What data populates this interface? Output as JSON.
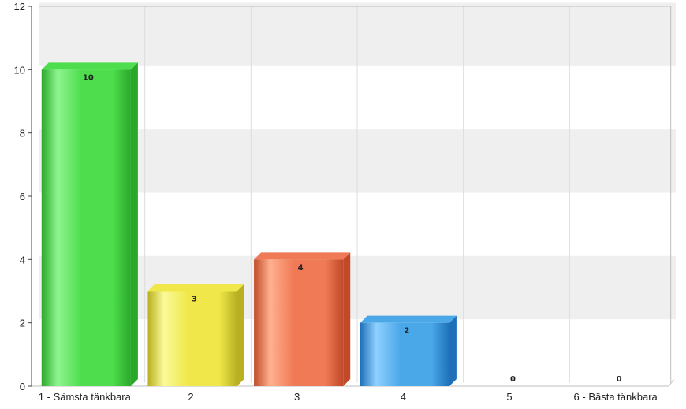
{
  "chart_data": {
    "type": "bar",
    "categories": [
      "1 - Sämsta tänkbara",
      "2",
      "3",
      "4",
      "5",
      "6 - Bästa tänkbara"
    ],
    "values": [
      10,
      3,
      4,
      2,
      0,
      0
    ],
    "data_labels": [
      "10",
      "3",
      "4",
      "2",
      "0",
      "0"
    ],
    "title": "",
    "xlabel": "",
    "ylabel": "",
    "ylim": [
      0,
      12
    ],
    "yticks": [
      "0",
      "2",
      "4",
      "6",
      "8",
      "10",
      "12"
    ],
    "grid": true,
    "legend": "none",
    "colors": {
      "bars": [
        "#4ddd4d",
        "#f0e84a",
        "#f07a55",
        "#4aa8e8",
        "#9b59b6",
        "#9b59b6"
      ],
      "bars_dark": [
        "#2aa82a",
        "#b8b020",
        "#c04a28",
        "#1f70b8",
        "#6a2a80",
        "#6a2a80"
      ],
      "bars_light": [
        "#8ff58f",
        "#fafa98",
        "#ffb08f",
        "#8fd0ff",
        "#c99be0",
        "#c99be0"
      ],
      "zero_label": "#6a1a3a",
      "band": "#efefef",
      "axis": "#bdbdbd"
    }
  }
}
